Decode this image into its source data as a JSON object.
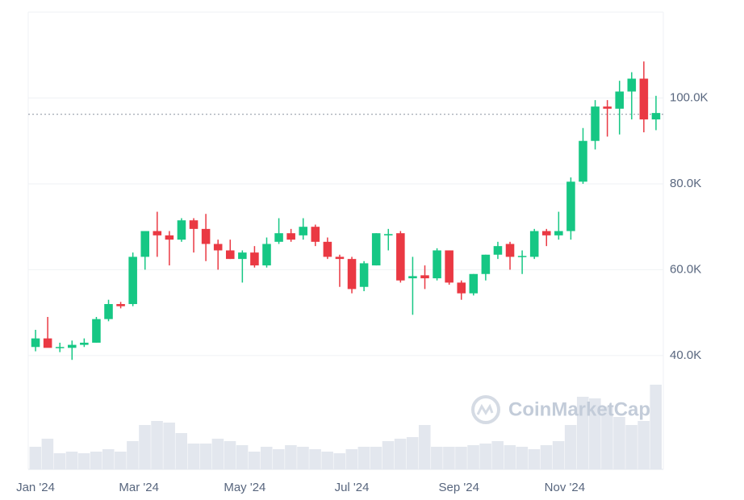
{
  "chart_data": {
    "type": "candlestick",
    "watermark": "CoinMarketCap",
    "open": [
      42.0,
      44.0,
      42.0,
      41.8,
      42.5,
      43.0,
      48.5,
      52.0,
      52.0,
      63.0,
      69.0,
      68.0,
      67.0,
      71.5,
      69.5,
      66.0,
      64.5,
      62.5,
      64.0,
      61.0,
      66.5,
      68.5,
      68.0,
      70.0,
      66.5,
      63.0,
      62.5,
      56.0,
      61.0,
      68.0,
      68.5,
      58.0,
      58.7,
      58.0,
      64.5,
      57.0,
      54.5,
      59.0,
      63.5,
      66.0,
      63.0,
      63.0,
      69.0,
      68.0,
      69.0,
      80.5,
      90.0,
      98.0,
      97.5,
      101.5,
      104.5,
      95.0
    ],
    "high": [
      46.0,
      49.0,
      43.0,
      43.5,
      44.0,
      49.0,
      53.0,
      52.5,
      64.0,
      69.0,
      73.5,
      69.0,
      72.0,
      72.0,
      73.0,
      67.0,
      67.0,
      64.5,
      65.5,
      67.5,
      72.0,
      69.5,
      72.0,
      70.5,
      67.5,
      63.5,
      63.0,
      62.0,
      68.5,
      69.5,
      69.0,
      63.0,
      61.0,
      65.0,
      64.5,
      57.5,
      59.0,
      63.5,
      66.5,
      66.5,
      64.5,
      69.5,
      69.5,
      73.5,
      81.5,
      93.0,
      99.5,
      99.5,
      104.0,
      106.0,
      108.5,
      100.5
    ],
    "low": [
      41.0,
      42.0,
      40.8,
      39.0,
      42.0,
      43.0,
      48.0,
      51.0,
      51.5,
      60.0,
      63.0,
      61.0,
      66.5,
      64.0,
      62.0,
      60.0,
      62.5,
      57.0,
      60.5,
      60.5,
      66.0,
      66.5,
      67.0,
      65.5,
      62.5,
      56.0,
      54.5,
      55.0,
      61.0,
      64.5,
      57.0,
      49.5,
      55.5,
      57.5,
      56.5,
      53.0,
      54.0,
      57.5,
      62.5,
      60.0,
      59.0,
      62.5,
      65.5,
      67.0,
      67.0,
      80.0,
      88.0,
      91.0,
      91.5,
      95.0,
      92.0,
      92.5
    ],
    "close": [
      44.0,
      41.8,
      42.0,
      42.5,
      43.0,
      48.5,
      52.0,
      51.5,
      63.0,
      69.0,
      68.0,
      67.0,
      71.5,
      69.5,
      66.0,
      64.5,
      62.5,
      64.0,
      61.0,
      66.0,
      68.5,
      67.0,
      70.0,
      66.5,
      63.0,
      62.5,
      55.5,
      61.5,
      68.5,
      68.3,
      57.5,
      58.5,
      58.0,
      64.5,
      57.0,
      54.5,
      59.0,
      63.5,
      65.5,
      63.0,
      63.2,
      69.0,
      68.0,
      69.0,
      80.5,
      90.0,
      98.0,
      97.5,
      101.5,
      104.5,
      95.0,
      96.5
    ],
    "volume": [
      28,
      38,
      20,
      22,
      20,
      22,
      25,
      22,
      35,
      55,
      60,
      58,
      45,
      32,
      32,
      38,
      35,
      30,
      22,
      28,
      25,
      30,
      28,
      25,
      22,
      20,
      25,
      28,
      28,
      35,
      38,
      40,
      55,
      28,
      28,
      28,
      30,
      32,
      35,
      30,
      28,
      25,
      30,
      35,
      55,
      90,
      88,
      78,
      65,
      55,
      60,
      105
    ],
    "y2lim": [
      0,
      110
    ],
    "up_color": "#16c784",
    "down_color": "#ea3943",
    "volume_color": "#e3e7ee",
    "reference_line": 96.2,
    "ylim": [
      13.5,
      120
    ],
    "yticks": [
      {
        "value": 40,
        "label": "40.0K"
      },
      {
        "value": 60,
        "label": "60.0K"
      },
      {
        "value": 80,
        "label": "80.0K"
      },
      {
        "value": 100,
        "label": "100.0K"
      }
    ],
    "xlim": [
      -0.6,
      51.6
    ],
    "xticks": [
      {
        "value": 0,
        "label": "Jan '24"
      },
      {
        "value": 8.5,
        "label": "Mar '24"
      },
      {
        "value": 17.2,
        "label": "May '24"
      },
      {
        "value": 26,
        "label": "Jul '24"
      },
      {
        "value": 34.8,
        "label": "Sep '24"
      },
      {
        "value": 43.5,
        "label": "Nov '24"
      }
    ],
    "grid": true
  }
}
